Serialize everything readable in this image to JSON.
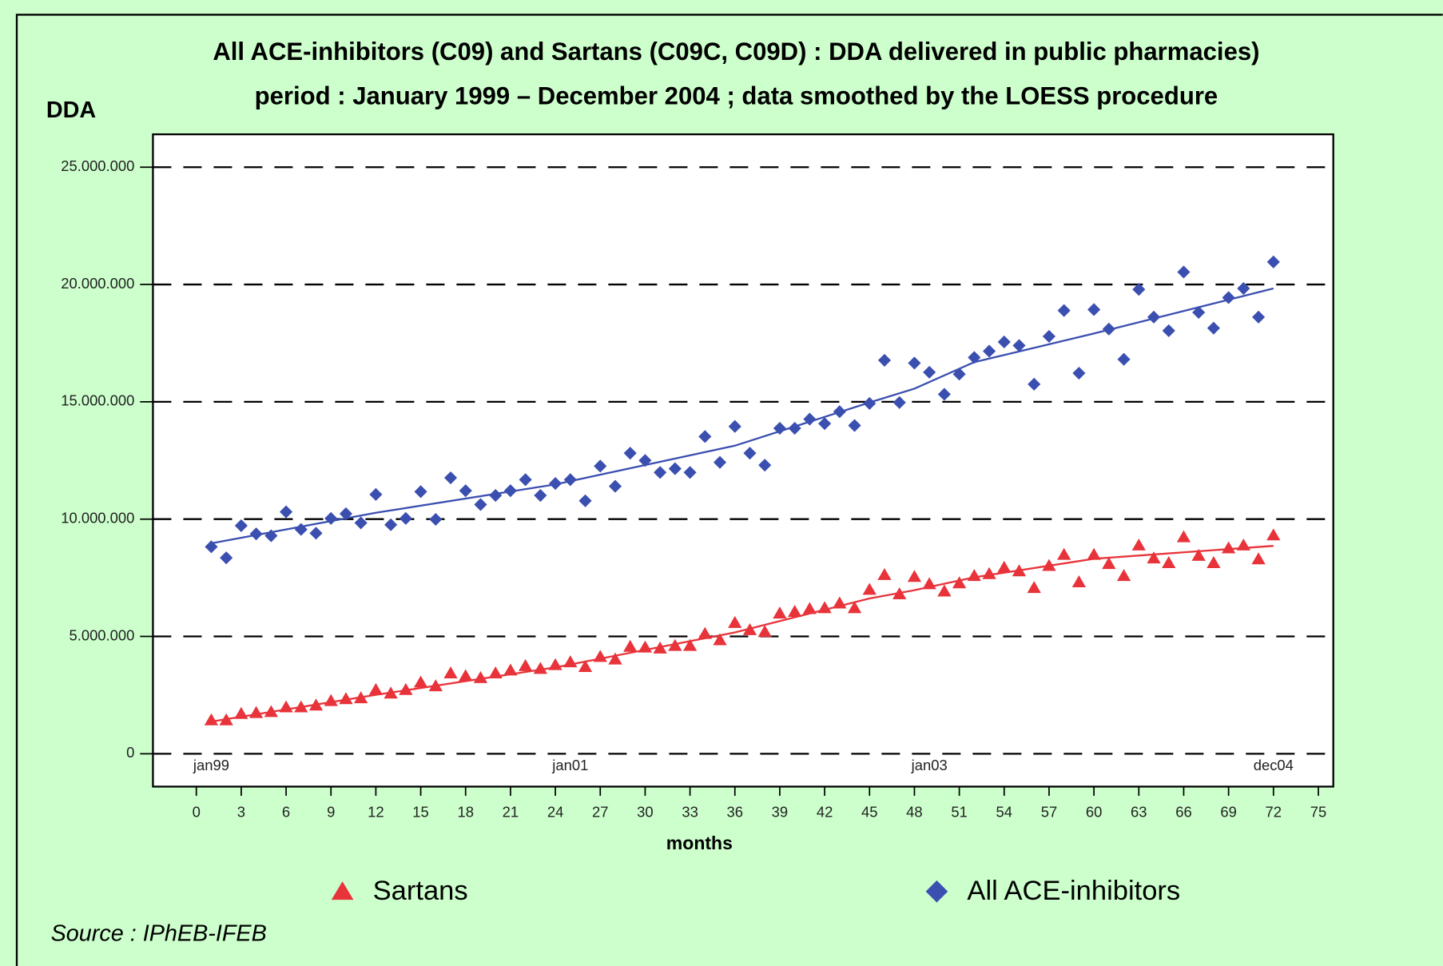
{
  "chart_data": {
    "type": "scatter",
    "title": "All ACE-inhibitors (C09) and Sartans (C09C, C09D) : DDA delivered in public pharmacies)",
    "subtitle": "period : January 1999 – December 2004 ; data smoothed by the LOESS procedure",
    "y_label": "DDA",
    "x_label": "months",
    "source": "Source : IPhEB-IFEB",
    "xlim": [
      -2.9,
      76
    ],
    "ylim": [
      -1400000,
      26400000
    ],
    "xticks": [
      0,
      3,
      6,
      9,
      12,
      15,
      18,
      21,
      24,
      27,
      30,
      33,
      36,
      39,
      42,
      45,
      48,
      51,
      54,
      57,
      60,
      63,
      66,
      69,
      72,
      75
    ],
    "yticks": [
      0,
      {
        "value": 5000000,
        "label": "5.000.000"
      },
      {
        "value": 10000000,
        "label": "10.000.000"
      },
      {
        "value": 15000000,
        "label": "15.000.000"
      },
      {
        "value": 20000000,
        "label": "20.000.000"
      },
      {
        "value": 25000000,
        "label": "25.000.000"
      }
    ],
    "grid": true,
    "period_labels": [
      {
        "x": 1,
        "label": "jan99"
      },
      {
        "x": 25,
        "label": "jan01"
      },
      {
        "x": 49,
        "label": "jan03"
      },
      {
        "x": 72,
        "label": "dec04"
      }
    ],
    "x": [
      1,
      2,
      3,
      4,
      5,
      6,
      7,
      8,
      9,
      10,
      11,
      12,
      13,
      14,
      15,
      16,
      17,
      18,
      19,
      20,
      21,
      22,
      23,
      24,
      25,
      26,
      27,
      28,
      29,
      30,
      31,
      32,
      33,
      34,
      35,
      36,
      37,
      38,
      39,
      40,
      41,
      42,
      43,
      44,
      45,
      46,
      47,
      48,
      49,
      50,
      51,
      52,
      53,
      54,
      55,
      56,
      57,
      58,
      59,
      60,
      61,
      62,
      63,
      64,
      65,
      66,
      67,
      68,
      69,
      70,
      71,
      72
    ],
    "smooth_x": [
      1,
      12,
      24,
      36,
      45,
      48,
      52,
      60,
      72
    ],
    "series": [
      {
        "name": "Sartans",
        "color": "#e8333a",
        "marker": "triangle",
        "values": [
          1450000,
          1450000,
          1720000,
          1760000,
          1800000,
          2000000,
          2000000,
          2080000,
          2270000,
          2350000,
          2390000,
          2740000,
          2590000,
          2740000,
          3060000,
          2900000,
          3450000,
          3330000,
          3250000,
          3450000,
          3570000,
          3760000,
          3640000,
          3800000,
          3920000,
          3720000,
          4150000,
          4040000,
          4580000,
          4550000,
          4510000,
          4620000,
          4620000,
          5130000,
          4860000,
          5600000,
          5290000,
          5210000,
          6000000,
          6070000,
          6190000,
          6230000,
          6430000,
          6230000,
          7010000,
          7640000,
          6820000,
          7560000,
          7250000,
          6940000,
          7290000,
          7600000,
          7680000,
          7950000,
          7800000,
          7090000,
          8030000,
          8500000,
          7330000,
          8500000,
          8110000,
          7600000,
          8900000,
          8350000,
          8150000,
          9250000,
          8460000,
          8150000,
          8780000,
          8900000,
          8310000,
          9330000
        ],
        "smooth": [
          1370000,
          2510000,
          3680000,
          5170000,
          6620000,
          6970000,
          7520000,
          8310000,
          8860000
        ]
      },
      {
        "name": "All ACE-inhibitors",
        "color": "#3a4fb0",
        "marker": "diamond",
        "values": [
          8820000,
          8350000,
          9720000,
          9370000,
          9290000,
          10310000,
          9560000,
          9400000,
          10030000,
          10230000,
          9840000,
          11050000,
          9760000,
          10030000,
          11170000,
          9990000,
          11760000,
          11210000,
          10620000,
          11010000,
          11210000,
          11680000,
          11010000,
          11520000,
          11680000,
          10780000,
          12260000,
          11400000,
          12810000,
          12500000,
          11990000,
          12150000,
          11990000,
          13520000,
          12420000,
          13950000,
          12810000,
          12300000,
          13870000,
          13870000,
          14260000,
          14070000,
          14580000,
          13990000,
          14930000,
          16770000,
          14970000,
          16650000,
          16260000,
          15320000,
          16180000,
          16890000,
          17160000,
          17550000,
          17400000,
          15750000,
          17790000,
          18890000,
          16220000,
          18930000,
          18100000,
          16810000,
          19790000,
          18610000,
          18030000,
          20530000,
          18810000,
          18140000,
          19440000,
          19830000,
          18610000,
          20960000
        ],
        "smooth": [
          8970000,
          10270000,
          11480000,
          13130000,
          14970000,
          15560000,
          16690000,
          17910000,
          19830000
        ]
      }
    ]
  }
}
